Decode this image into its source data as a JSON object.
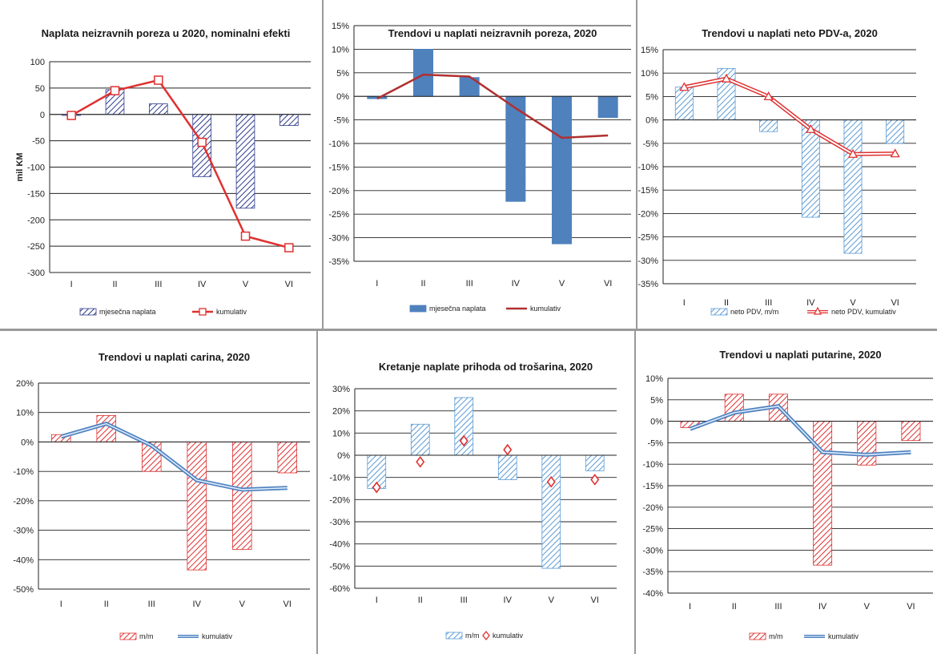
{
  "colors": {
    "navy": "#2e3b8c",
    "steel": "#4f81bd",
    "lightblue": "#5b9bd5",
    "red": "#e03030",
    "darkred": "#b03030",
    "grid": "#222222",
    "frame": "#9a9a9a"
  },
  "chart_data": [
    {
      "type": "bar",
      "title": "Naplata neizravnih poreza u 2020, nominalni efekti",
      "ylabel": "mil KM",
      "categories": [
        "I",
        "II",
        "III",
        "IV",
        "V",
        "VI"
      ],
      "ylim": [
        -300,
        100
      ],
      "ystep": 50,
      "ytick_labels": [
        "-300",
        "-250",
        "-200",
        "-150",
        "-100",
        "-50",
        "0",
        "50",
        "100"
      ],
      "bar_style": "hatch-navy",
      "line_style": "red-square",
      "legend": "bottom",
      "series": [
        {
          "name": "mjesečna naplata",
          "kind": "bar",
          "values": [
            -2,
            47,
            20,
            -118,
            -178,
            -21
          ]
        },
        {
          "name": "kumulativ",
          "kind": "line",
          "values": [
            -2,
            45,
            65,
            -53,
            -231,
            -253
          ]
        }
      ]
    },
    {
      "type": "bar",
      "title": "Trendovi u naplati neizravnih poreza, 2020",
      "categories": [
        "I",
        "II",
        "III",
        "IV",
        "V",
        "VI"
      ],
      "ylim": [
        -35,
        15
      ],
      "ystep": 5,
      "ytick_labels": [
        "-35%",
        "-30%",
        "-25%",
        "-20%",
        "-15%",
        "-10%",
        "-5%",
        "0%",
        "5%",
        "10%",
        "15%"
      ],
      "bar_style": "solid-steel",
      "line_style": "darkred-plain",
      "legend": "bottom",
      "series": [
        {
          "name": "mjesečna naplata",
          "kind": "bar",
          "values": [
            -0.5,
            10,
            4,
            -22.3,
            -31.3,
            -4.5
          ]
        },
        {
          "name": "kumulativ",
          "kind": "line",
          "values": [
            -0.5,
            4.6,
            4.2,
            -2.5,
            -8.8,
            -8.3
          ]
        }
      ]
    },
    {
      "type": "bar",
      "title": "Trendovi u naplati neto PDV-a, 2020",
      "categories": [
        "I",
        "II",
        "III",
        "IV",
        "V",
        "VI"
      ],
      "ylim": [
        -35,
        15
      ],
      "ystep": 5,
      "ytick_labels": [
        "-35%",
        "-30%",
        "-25%",
        "-20%",
        "-15%",
        "-10%",
        "-5%",
        "0%",
        "5%",
        "10%",
        "15%"
      ],
      "bar_style": "hatch-lightblue",
      "line_style": "red-double-triangle",
      "legend": "bottom",
      "series": [
        {
          "name": "neto PDV, m/m",
          "kind": "bar",
          "values": [
            7,
            11,
            -2.5,
            -20.8,
            -28.5,
            -5
          ]
        },
        {
          "name": "neto PDV, kumulativ",
          "kind": "line",
          "values": [
            7,
            8.8,
            5,
            -2,
            -7.3,
            -7.2
          ]
        }
      ]
    },
    {
      "type": "bar",
      "title": "Trendovi u naplati carina, 2020",
      "categories": [
        "I",
        "II",
        "III",
        "IV",
        "V",
        "VI"
      ],
      "ylim": [
        -50,
        20
      ],
      "ystep": 10,
      "ytick_labels": [
        "-50%",
        "-40%",
        "-30%",
        "-20%",
        "-10%",
        "0%",
        "10%",
        "20%"
      ],
      "bar_style": "hatch-red",
      "line_style": "blue-double",
      "legend": "bottom",
      "series": [
        {
          "name": "m/m",
          "kind": "bar",
          "values": [
            2.5,
            9,
            -10,
            -43.5,
            -36.5,
            -10.5
          ]
        },
        {
          "name": "kumulativ",
          "kind": "line",
          "values": [
            1.8,
            6.2,
            -1.2,
            -13,
            -16.2,
            -15.6
          ]
        }
      ]
    },
    {
      "type": "bar",
      "title": "Kretanje naplate prihoda od trošarina, 2020",
      "categories": [
        "I",
        "II",
        "III",
        "IV",
        "V",
        "VI"
      ],
      "ylim": [
        -60,
        30
      ],
      "ystep": 10,
      "ytick_labels": [
        "-60%",
        "-50%",
        "-40%",
        "-30%",
        "-20%",
        "-10%",
        "0%",
        "10%",
        "20%",
        "30%"
      ],
      "bar_style": "hatch-lightblue",
      "line_style": "red-diamond-only",
      "legend": "bottom",
      "series": [
        {
          "name": "m/m",
          "kind": "bar",
          "values": [
            -15,
            14,
            26,
            -11,
            -51,
            -7
          ]
        },
        {
          "name": "kumulativ",
          "kind": "line",
          "values": [
            -14.5,
            -3,
            6.5,
            2.5,
            -12,
            -11
          ]
        }
      ]
    },
    {
      "type": "bar",
      "title": "Trendovi u naplati putarine, 2020",
      "categories": [
        "I",
        "II",
        "III",
        "IV",
        "V",
        "VI"
      ],
      "ylim": [
        -40,
        10
      ],
      "ystep": 5,
      "ytick_labels": [
        "-40%",
        "-35%",
        "-30%",
        "-25%",
        "-20%",
        "-15%",
        "-10%",
        "-5%",
        "0%",
        "5%",
        "10%"
      ],
      "bar_style": "hatch-red",
      "line_style": "blue-double",
      "legend": "bottom",
      "series": [
        {
          "name": "m/m",
          "kind": "bar",
          "values": [
            -1.5,
            6.3,
            6.3,
            -33.5,
            -10.2,
            -4.5
          ]
        },
        {
          "name": "kumulativ",
          "kind": "line",
          "values": [
            -1.8,
            2,
            3.5,
            -7.2,
            -7.8,
            -7.2
          ]
        }
      ]
    }
  ]
}
